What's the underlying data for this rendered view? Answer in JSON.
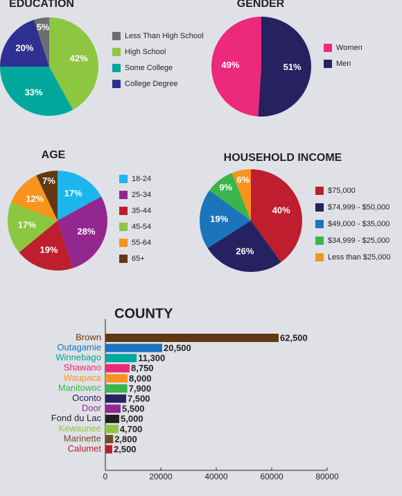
{
  "chart_data": [
    {
      "type": "pie",
      "title": "EDUCATION",
      "categories": [
        "Less Than High School",
        "High School",
        "Some College",
        "College Degree"
      ],
      "values": [
        5,
        42,
        33,
        20
      ],
      "value_labels": [
        "5%",
        "42%",
        "33%",
        "20%"
      ],
      "colors": [
        "#6d6e70",
        "#8dc63f",
        "#00a79d",
        "#2e3192"
      ]
    },
    {
      "type": "pie",
      "title": "GENDER",
      "categories": [
        "Women",
        "Men"
      ],
      "values": [
        49,
        51
      ],
      "value_labels": [
        "49%",
        "51%"
      ],
      "colors": [
        "#ec297b",
        "#262262"
      ]
    },
    {
      "type": "pie",
      "title": "AGE",
      "categories": [
        "18-24",
        "25-34",
        "35-44",
        "45-54",
        "55-64",
        "65+"
      ],
      "values": [
        17,
        28,
        19,
        17,
        12,
        7
      ],
      "value_labels": [
        "17%",
        "28%",
        "19%",
        "17%",
        "12%",
        "7%"
      ],
      "colors": [
        "#1cb5ec",
        "#92278f",
        "#be1e2d",
        "#8dc63f",
        "#f7941d",
        "#603913"
      ]
    },
    {
      "type": "pie",
      "title": "HOUSEHOLD INCOME",
      "categories": [
        "$75,000",
        "$74,999 - $50,000",
        "$49,000 - $35,000",
        "$34,999 - $25,000",
        "Less than $25,000"
      ],
      "values": [
        40,
        26,
        19,
        9,
        6
      ],
      "value_labels": [
        "40%",
        "26%",
        "19%",
        "9%",
        "6%"
      ],
      "colors": [
        "#be1e2d",
        "#262262",
        "#1c75bc",
        "#39b54a",
        "#f7941d"
      ]
    },
    {
      "type": "barh",
      "title": "COUNTY",
      "categories": [
        "Brown",
        "Outagamie",
        "Winnebago",
        "Shawano",
        "Waupaca",
        "Manitowoc",
        "Oconto",
        "Door",
        "Fond du Lac",
        "Kewaunee",
        "Marinette",
        "Calumet"
      ],
      "values": [
        62500,
        20500,
        11300,
        8750,
        8000,
        7900,
        7500,
        5500,
        5000,
        4700,
        2800,
        2500
      ],
      "value_labels": [
        "62,500",
        "20,500",
        "11,300",
        "8,750",
        "8,000",
        "7,900",
        "7,500",
        "5,500",
        "5,000",
        "4,700",
        "2,800",
        "2,500"
      ],
      "colors": [
        "#603913",
        "#1c75bc",
        "#00a79d",
        "#ec297b",
        "#f7941d",
        "#39b54a",
        "#262262",
        "#92278f",
        "#231f20",
        "#8dc63f",
        "#754c24",
        "#be1e2d"
      ],
      "xlim": [
        0,
        80000
      ],
      "xticks": [
        0,
        20000,
        40000,
        60000,
        80000
      ]
    }
  ]
}
